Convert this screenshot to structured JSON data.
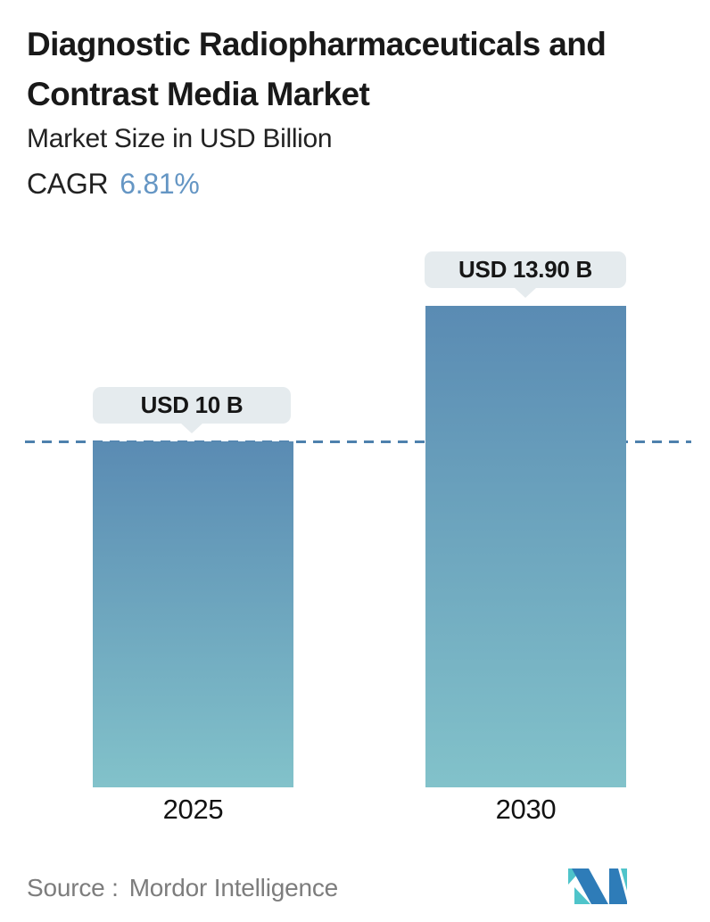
{
  "header": {
    "title_line1": "Diagnostic Radiopharmaceuticals and",
    "title_line2": "Contrast Media Market",
    "subtitle": "Market Size in USD Billion",
    "cagr_label": "CAGR",
    "cagr_value": "6.81%"
  },
  "chart_data": {
    "type": "bar",
    "categories": [
      "2025",
      "2030"
    ],
    "values": [
      10,
      13.9
    ],
    "value_labels": [
      "USD 10 B",
      "USD 13.90 B"
    ],
    "title": "Diagnostic Radiopharmaceuticals and Contrast Media Market",
    "xlabel": "",
    "ylabel": "Market Size in USD Billion",
    "ylim": [
      0,
      15
    ],
    "cagr_percent": 6.81,
    "reference_line": {
      "value": 10,
      "style": "dashed"
    },
    "grid": false,
    "legend": "none"
  },
  "footer": {
    "source_label": "Source :",
    "source_value": "Mordor Intelligence",
    "logo_name": "mordor-intelligence-logo"
  },
  "colors": {
    "bar-top": "#5a8bb3",
    "bar-bottom": "#82c2ca",
    "dash-line": "#4e81ad",
    "tooltip-bg": "#e5ebee",
    "cagr-accent": "#6596c4",
    "logo-blue": "#2e7cb8",
    "logo-teal": "#4fc4ca",
    "text-dark": "#191919",
    "text-gray": "#7d7d7d"
  }
}
